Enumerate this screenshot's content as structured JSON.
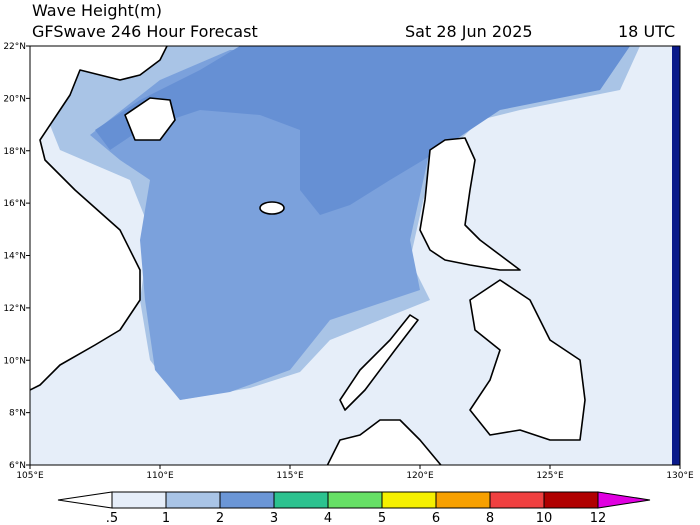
{
  "header": {
    "title": "Wave Height(m)",
    "subtitle": "GFSwave 246 Hour Forecast",
    "date": "Sat 28 Jun 2025",
    "time": "18 UTC"
  },
  "map": {
    "lat_labels": [
      "6°N",
      "8°N",
      "10°N",
      "12°N",
      "14°N",
      "16°N",
      "18°N",
      "20°N",
      "22°N"
    ],
    "lon_labels": [
      "105°E",
      "110°E",
      "115°E",
      "120°E",
      "125°E",
      "130°E"
    ]
  },
  "colorbar": {
    "labels": [
      ".5",
      "1",
      "2",
      "3",
      "4",
      "5",
      "6",
      "8",
      "10",
      "12"
    ],
    "colors": [
      "#ffffff",
      "#e6eef9",
      "#a9c4e6",
      "#6b96d6",
      "#2cc28f",
      "#66e065",
      "#f5f000",
      "#f7a000",
      "#f04040",
      "#b00000",
      "#e000e0"
    ]
  }
}
